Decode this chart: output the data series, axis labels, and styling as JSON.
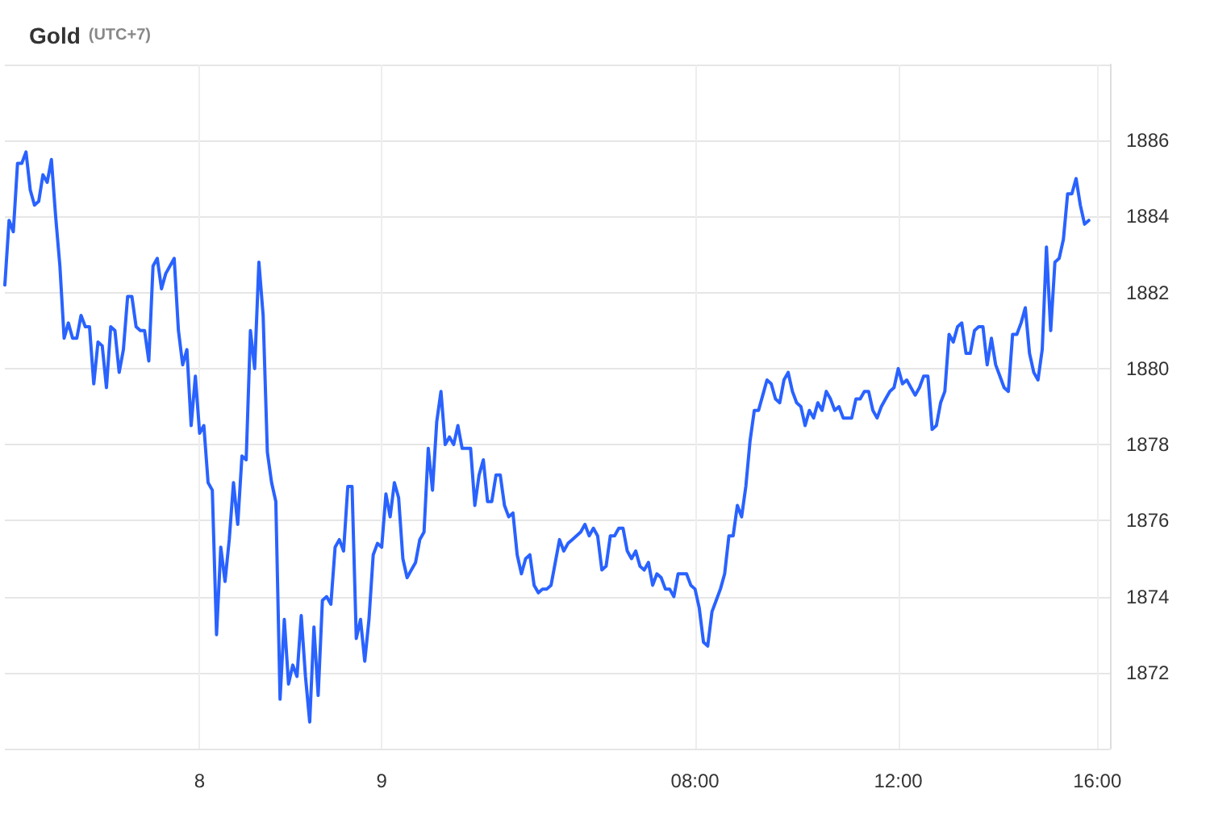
{
  "chart_data": {
    "type": "line",
    "title": "Gold",
    "subtitle": "(UTC+7)",
    "categories": [
      null,
      null,
      null,
      null,
      null,
      null,
      null,
      null,
      null,
      null,
      null,
      null,
      null,
      null,
      null,
      null,
      null,
      null,
      null,
      null,
      null,
      null,
      null,
      null,
      null,
      null,
      null,
      null,
      null,
      null,
      null,
      null,
      null,
      null,
      null,
      null,
      null,
      null,
      null,
      null,
      null,
      null,
      null,
      null,
      null,
      null,
      "8",
      null,
      null,
      null,
      null,
      null,
      null,
      null,
      null,
      null,
      null,
      null,
      null,
      null,
      null,
      null,
      null,
      null,
      null,
      null,
      null,
      null,
      null,
      null,
      null,
      null,
      null,
      null,
      null,
      null,
      null,
      null,
      null,
      null,
      null,
      null,
      null,
      null,
      null,
      null,
      null,
      null,
      null,
      "9",
      null,
      null,
      null,
      null,
      null,
      null,
      null,
      null,
      null,
      null,
      null,
      null,
      null,
      null,
      null,
      null,
      null,
      null,
      null,
      null,
      null,
      null,
      null,
      null,
      null,
      null,
      null,
      null,
      null,
      null,
      null,
      null,
      null,
      null,
      null,
      null,
      null,
      null,
      null,
      null,
      null,
      null,
      null,
      null,
      null,
      null,
      null,
      null,
      null,
      null,
      null,
      null,
      null,
      null,
      null,
      null,
      null,
      null,
      null,
      null,
      null,
      null,
      null,
      null,
      null,
      null,
      null,
      null,
      null,
      null,
      null,
      null,
      null,
      "08:00",
      null,
      null,
      null,
      null,
      null,
      null,
      null,
      null,
      null,
      null,
      null,
      null,
      null,
      null,
      null,
      null,
      null,
      null,
      null,
      null,
      null,
      null,
      null,
      null,
      null,
      null,
      null,
      null,
      null,
      null,
      null,
      null,
      null,
      null,
      null,
      null,
      null,
      null,
      null,
      null,
      null,
      null,
      null,
      null,
      null,
      null,
      null,
      "12:00",
      null,
      null,
      null,
      null,
      null,
      null,
      null,
      null,
      null,
      null,
      null,
      null,
      null,
      null,
      null,
      null,
      null,
      null,
      null,
      null,
      null,
      null,
      null,
      null,
      null,
      null,
      null,
      null,
      null,
      null,
      null,
      null,
      null,
      null,
      null,
      null,
      null,
      null,
      null,
      null,
      null,
      null,
      null,
      null,
      null,
      null,
      "16:00",
      null,
      null,
      null
    ],
    "series": [
      {
        "color": "#2962ff",
        "values": [
          1882.2,
          1883.9,
          1883.6,
          1885.4,
          1885.4,
          1885.7,
          1884.7,
          1884.3,
          1884.4,
          1885.1,
          1884.9,
          1885.5,
          1884.0,
          1882.7,
          1880.8,
          1881.2,
          1880.8,
          1880.8,
          1881.4,
          1881.1,
          1881.1,
          1879.6,
          1880.7,
          1880.6,
          1879.5,
          1881.1,
          1881.0,
          1879.9,
          1880.5,
          1881.9,
          1881.9,
          1881.1,
          1881.0,
          1881.0,
          1880.2,
          1882.7,
          1882.9,
          1882.1,
          1882.5,
          1882.7,
          1882.9,
          1881.0,
          1880.1,
          1880.5,
          1878.5,
          1879.8,
          1878.3,
          1878.5,
          1877.0,
          1876.8,
          1873.0,
          1875.3,
          1874.4,
          1875.5,
          1877.0,
          1875.9,
          1877.7,
          1877.6,
          1881.0,
          1880.0,
          1882.8,
          1881.4,
          1877.8,
          1877.0,
          1876.5,
          1871.3,
          1873.4,
          1871.7,
          1872.2,
          1871.9,
          1873.5,
          1871.9,
          1870.7,
          1873.2,
          1871.4,
          1873.9,
          1874.0,
          1873.8,
          1875.3,
          1875.5,
          1875.2,
          1876.9,
          1876.9,
          1872.9,
          1873.4,
          1872.3,
          1873.4,
          1875.1,
          1875.4,
          1875.3,
          1876.7,
          1876.1,
          1877.0,
          1876.6,
          1875.0,
          1874.5,
          1874.7,
          1874.9,
          1875.5,
          1875.7,
          1877.9,
          1876.8,
          1878.6,
          1879.4,
          1878.0,
          1878.2,
          1878.0,
          1878.5,
          1877.9,
          1877.9,
          1877.9,
          1876.4,
          1877.2,
          1877.6,
          1876.5,
          1876.5,
          1877.2,
          1877.2,
          1876.4,
          1876.1,
          1876.2,
          1875.1,
          1874.6,
          1875.0,
          1875.1,
          1874.3,
          1874.1,
          1874.2,
          1874.2,
          1874.3,
          1874.9,
          1875.5,
          1875.2,
          1875.4,
          1875.5,
          1875.6,
          1875.7,
          1875.9,
          1875.6,
          1875.8,
          1875.6,
          1874.7,
          1874.8,
          1875.6,
          1875.6,
          1875.8,
          1875.8,
          1875.2,
          1875.0,
          1875.2,
          1874.8,
          1874.7,
          1874.9,
          1874.3,
          1874.6,
          1874.5,
          1874.2,
          1874.2,
          1874.0,
          1874.6,
          1874.6,
          1874.6,
          1874.3,
          1874.2,
          1873.7,
          1872.8,
          1872.7,
          1873.6,
          1873.9,
          1874.2,
          1874.6,
          1875.6,
          1875.6,
          1876.4,
          1876.1,
          1876.9,
          1878.1,
          1878.9,
          1878.9,
          1879.3,
          1879.7,
          1879.6,
          1879.2,
          1879.1,
          1879.7,
          1879.9,
          1879.4,
          1879.1,
          1879.0,
          1878.5,
          1878.9,
          1878.7,
          1879.1,
          1878.9,
          1879.4,
          1879.2,
          1878.9,
          1879.0,
          1878.7,
          1878.7,
          1878.7,
          1879.2,
          1879.2,
          1879.4,
          1879.4,
          1878.9,
          1878.7,
          1879.0,
          1879.2,
          1879.4,
          1879.5,
          1880.0,
          1879.6,
          1879.7,
          1879.5,
          1879.3,
          1879.5,
          1879.8,
          1879.8,
          1878.4,
          1878.5,
          1879.1,
          1879.4,
          1880.9,
          1880.7,
          1881.1,
          1881.2,
          1880.4,
          1880.4,
          1881.0,
          1881.1,
          1881.1,
          1880.1,
          1880.8,
          1880.1,
          1879.8,
          1879.5,
          1879.4,
          1880.9,
          1880.9,
          1881.2,
          1881.6,
          1880.4,
          1879.9,
          1879.7,
          1880.5,
          1883.2,
          1881.0,
          1882.8,
          1882.9,
          1883.4,
          1884.6,
          1884.6,
          1885.0,
          1884.3,
          1883.8,
          1883.9,
          null,
          null,
          null,
          null,
          null
        ]
      }
    ],
    "ylim": [
      1870,
      1888
    ],
    "yticks": [
      {
        "value": 1870,
        "label": null
      },
      1872,
      1874,
      1876,
      1878,
      1880,
      1882,
      1884,
      1886,
      {
        "value": 1888,
        "label": null
      }
    ],
    "grid": true,
    "marker": "none",
    "line_style": "solid"
  }
}
